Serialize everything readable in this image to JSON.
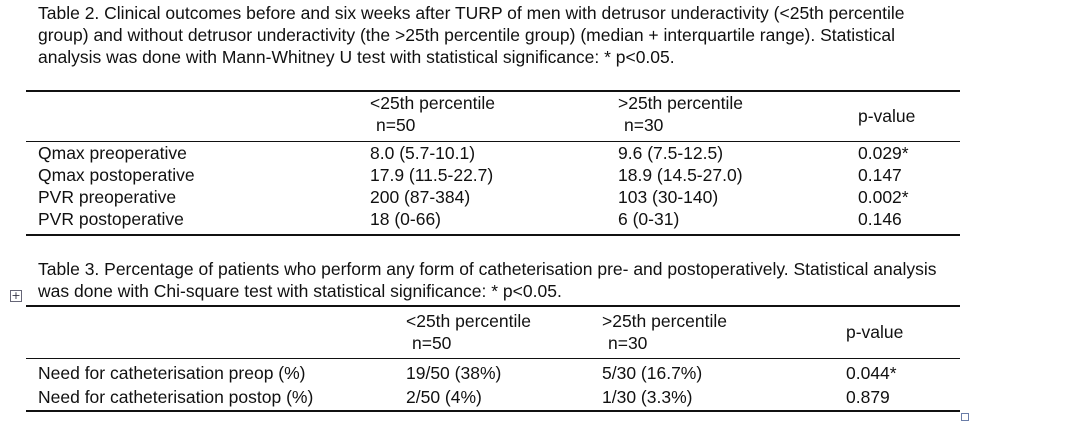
{
  "table2": {
    "caption_lines": [
      "Table 2. Clinical outcomes before and six weeks after TURP of men with detrusor underactivity (<25th percentile",
      "group) and without detrusor underactivity (the >25th percentile group) (median + interquartile range). Statistical",
      "analysis was done with Mann-Whitney U test with statistical significance: * p<0.05."
    ],
    "caption_prefix": "Table 2",
    "headers": {
      "col1_line1": "<25th percentile",
      "col1_line2": "n=50",
      "col2_line1": ">25th percentile",
      "col2_line2": "n=30",
      "col3": "p-value"
    },
    "rows": [
      {
        "label": "Qmax preoperative",
        "c1": "8.0 (5.7-10.1)",
        "c2": "9.6 (7.5-12.5)",
        "p": "0.029*"
      },
      {
        "label": "Qmax postoperative",
        "c1": "17.9 (11.5-22.7)",
        "c2": "18.9 (14.5-27.0)",
        "p": "0.147"
      },
      {
        "label": "PVR preoperative",
        "c1": "200 (87-384)",
        "c2": "103 (30-140)",
        "p": "0.002*"
      },
      {
        "label": "PVR postoperative",
        "c1": "18 (0-66)",
        "c2": "6 (0-31)",
        "p": "0.146"
      }
    ]
  },
  "table3": {
    "caption_lines": [
      "Table 3. Percentage of patients who perform any form of catheterisation pre- and postoperatively. Statistical analysis",
      "was done with Chi-square test with statistical significance: * p<0.05."
    ],
    "headers": {
      "col1_line1": "<25th percentile",
      "col1_line2": "n=50",
      "col2_line1": ">25th percentile",
      "col2_line2": "n=30",
      "col3": "p-value"
    },
    "rows": [
      {
        "label": "Need for catheterisation preop (%)",
        "c1": "19/50 (38%)",
        "c2": "5/30 (16.7%)",
        "p": "0.044*"
      },
      {
        "label": "Need for catheterisation postop (%)",
        "c1": "2/50 (4%)",
        "c2": "1/30 (3.3%)",
        "p": "0.879"
      }
    ]
  },
  "icons": {
    "table_anchor": "table-move-handle-icon",
    "table_resize": "table-resize-handle-icon"
  }
}
